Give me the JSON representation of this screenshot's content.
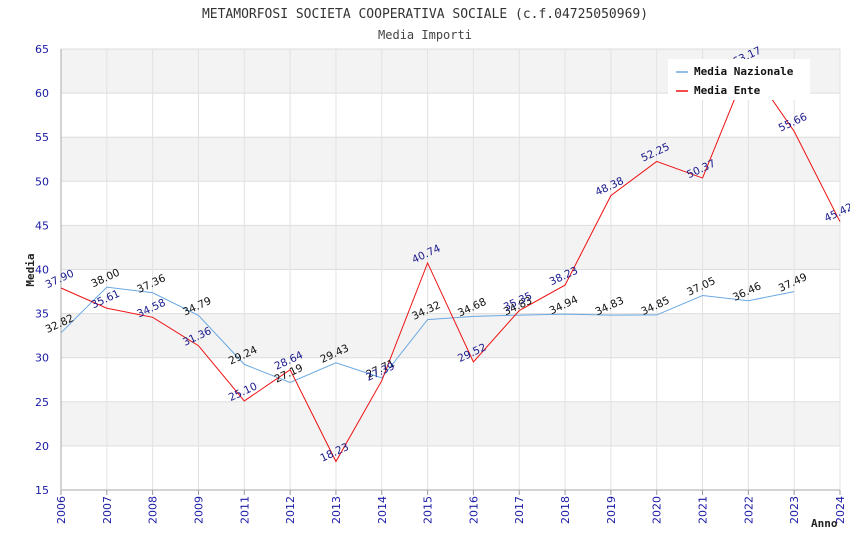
{
  "chart_data": {
    "type": "line",
    "title": "METAMORFOSI SOCIETA COOPERATIVA SOCIALE (c.f.04725050969)",
    "subtitle": "Media Importi",
    "xlabel": "Anno",
    "ylabel": "Media",
    "ylim": [
      15,
      65
    ],
    "yticks": [
      15,
      20,
      25,
      30,
      35,
      40,
      45,
      50,
      55,
      60,
      65
    ],
    "x": [
      "2006",
      "2007",
      "2008",
      "2009",
      "2011",
      "2012",
      "2013",
      "2014",
      "2015",
      "2016",
      "2017",
      "2018",
      "2019",
      "2020",
      "2021",
      "2022",
      "2023",
      "2024"
    ],
    "legend_position": "top-right",
    "series": [
      {
        "name": "Media Nazionale",
        "color": "#6aa8e0",
        "values": [
          32.82,
          38.0,
          37.36,
          34.79,
          29.24,
          27.19,
          29.43,
          27.71,
          34.32,
          34.68,
          34.83,
          34.94,
          34.83,
          34.85,
          37.05,
          36.46,
          37.49,
          null
        ],
        "labels": [
          "32.82",
          "38.00",
          "37.36",
          "34.79",
          "29.24",
          "27.19",
          "29.43",
          "27.71",
          "34.32",
          "34.68",
          "34.83",
          "34.94",
          "34.83",
          "34.85",
          "37.05",
          "36.46",
          "37.49",
          null
        ]
      },
      {
        "name": "Media Ente",
        "color": "#ee1111",
        "values": [
          37.9,
          35.61,
          34.58,
          31.36,
          25.1,
          28.64,
          18.23,
          27.39,
          40.74,
          29.52,
          35.35,
          38.23,
          48.38,
          52.25,
          50.37,
          63.17,
          55.66,
          45.42
        ],
        "labels": [
          "37.90",
          "35.61",
          "34.58",
          "31.36",
          "25.10",
          "28.64",
          "18.23",
          "27.39",
          "40.74",
          "29.52",
          "35.35",
          "38.23",
          "48.38",
          "52.25",
          "50.37",
          "63.17",
          "55.66",
          "45.42"
        ]
      }
    ]
  }
}
